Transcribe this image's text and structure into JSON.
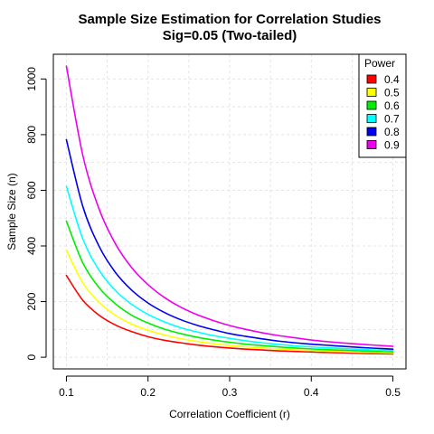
{
  "chart_data": {
    "type": "line",
    "title": "Sample Size Estimation for Correlation Studies",
    "subtitle": "Sig=0.05 (Two-tailed)",
    "xlabel": "Correlation Coefficient (r)",
    "ylabel": "Sample Size (n)",
    "xlim": [
      0.1,
      0.5
    ],
    "ylim": [
      0,
      1047
    ],
    "x_ticks": [
      0.1,
      0.2,
      0.3,
      0.4,
      0.5
    ],
    "x_tick_labels": [
      "0.1",
      "0.2",
      "0.3",
      "0.4",
      "0.5"
    ],
    "y_ticks": [
      0,
      200,
      400,
      600,
      800,
      1000
    ],
    "y_tick_labels": [
      "0",
      "200",
      "400",
      "600",
      "800",
      "1000"
    ],
    "grid": true,
    "legend": {
      "title": "Power",
      "position": "top-right"
    },
    "x": [
      0.1,
      0.12,
      0.14,
      0.16,
      0.18,
      0.2,
      0.22,
      0.24,
      0.26,
      0.28,
      0.3,
      0.32,
      0.34,
      0.36,
      0.38,
      0.4,
      0.42,
      0.44,
      0.46,
      0.48,
      0.5
    ],
    "series": [
      {
        "name": "0.4",
        "color": "#ff0000",
        "values": [
          294,
          205,
          151,
          116,
          92,
          74,
          61,
          52,
          44,
          38,
          33,
          29,
          26,
          23,
          21,
          19,
          17,
          16,
          14,
          13,
          12
        ]
      },
      {
        "name": "0.5",
        "color": "#ffff00",
        "values": [
          385,
          268,
          197,
          151,
          119,
          97,
          80,
          67,
          57,
          49,
          42,
          37,
          33,
          29,
          26,
          24,
          22,
          20,
          18,
          17,
          15
        ]
      },
      {
        "name": "0.6",
        "color": "#00ee00",
        "values": [
          489,
          340,
          250,
          192,
          151,
          123,
          101,
          85,
          72,
          62,
          54,
          47,
          42,
          37,
          33,
          30,
          27,
          25,
          23,
          21,
          19
        ]
      },
      {
        "name": "0.7",
        "color": "#00ffff",
        "values": [
          614,
          426,
          313,
          240,
          190,
          154,
          127,
          106,
          91,
          78,
          68,
          59,
          52,
          46,
          41,
          37,
          34,
          31,
          28,
          26,
          24
        ]
      },
      {
        "name": "0.8",
        "color": "#0000ee",
        "values": [
          782,
          543,
          399,
          305,
          241,
          195,
          161,
          135,
          115,
          99,
          85,
          75,
          66,
          58,
          52,
          47,
          43,
          39,
          35,
          32,
          29
        ]
      },
      {
        "name": "0.9",
        "color": "#ee00ee",
        "values": [
          1046,
          727,
          533,
          408,
          322,
          261,
          215,
          180,
          153,
          132,
          114,
          100,
          88,
          78,
          70,
          62,
          56,
          51,
          47,
          43,
          39
        ]
      }
    ]
  }
}
